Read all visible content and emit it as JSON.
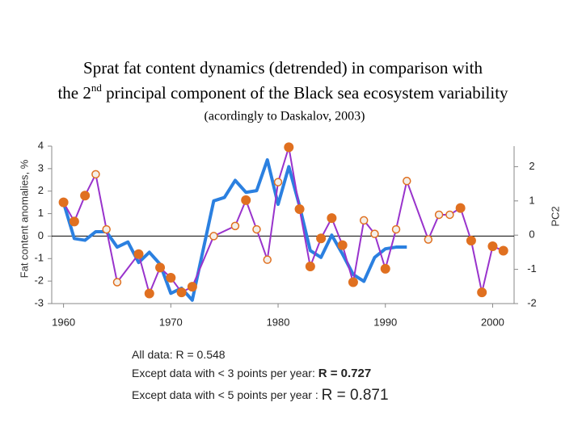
{
  "chart_data": {
    "type": "line",
    "title_line1": "Sprat fat content dynamics (detrended) in comparison with",
    "title_line2_start": "the 2",
    "title_line2_sup": "nd",
    "title_line2_end": " principal component of the Black sea ecosystem variability",
    "subtitle": "(acordingly to Daskalov, 2003)",
    "ylabel": "Fat content anomalies, %",
    "y2label": "PC2",
    "xlim": [
      1958.9,
      2002
    ],
    "xticks": [
      1960,
      1970,
      1980,
      1990,
      2000
    ],
    "ylim": [
      -3,
      4
    ],
    "yticks": [
      -3,
      -2,
      -1,
      0,
      1,
      2,
      3,
      4
    ],
    "y2lim": [
      -2,
      2.6
    ],
    "y2ticks": [
      -2,
      -1,
      0,
      1,
      2
    ],
    "series": [
      {
        "color": "#9933cc",
        "marker_color": "#e07020",
        "x": [
          1960,
          1961,
          1962,
          1963,
          1964,
          1965,
          1967,
          1968,
          1969,
          1970,
          1971,
          1972,
          1974,
          1976,
          1977,
          1978,
          1979,
          1980,
          1981,
          1982,
          1983,
          1984,
          1985,
          1986,
          1987,
          1988,
          1989,
          1990,
          1991,
          1992,
          1994,
          1995,
          1996,
          1997,
          1998,
          1999,
          2000,
          2001
        ],
        "values": [
          1.5,
          0.65,
          1.8,
          2.75,
          0.3,
          -2.05,
          -0.8,
          -2.55,
          -1.4,
          -1.85,
          -2.5,
          -2.25,
          0,
          0.45,
          1.6,
          0.3,
          -1.05,
          2.4,
          3.95,
          1.2,
          -1.35,
          -0.1,
          0.8,
          -0.4,
          -2.05,
          0.7,
          0.1,
          -1.45,
          0.3,
          2.45,
          -0.15,
          0.95,
          0.95,
          1.25,
          -0.2,
          -2.5,
          -0.45,
          -0.65
        ],
        "marker_filled": [
          true,
          true,
          true,
          false,
          false,
          false,
          true,
          true,
          true,
          true,
          true,
          true,
          false,
          false,
          true,
          false,
          false,
          false,
          true,
          true,
          true,
          true,
          true,
          true,
          true,
          false,
          false,
          true,
          false,
          false,
          false,
          false,
          false,
          true,
          true,
          true,
          true,
          true
        ]
      },
      {
        "color": "#2b80e0",
        "axis": "y2",
        "x": [
          1960,
          1961,
          1962,
          1963,
          1964,
          1965,
          1966,
          1967,
          1968,
          1969,
          1970,
          1971,
          1972,
          1973,
          1974,
          1975,
          1976,
          1977,
          1978,
          1979,
          1980,
          1981,
          1982,
          1983,
          1984,
          1985,
          1986,
          1987,
          1988,
          1989,
          1990,
          1991,
          1992
        ],
        "values": [
          0.95,
          -0.1,
          -0.15,
          0.1,
          0.1,
          -0.35,
          -0.2,
          -0.8,
          -0.5,
          -0.85,
          -1.7,
          -1.55,
          -1.9,
          -0.45,
          1.0,
          1.1,
          1.6,
          1.25,
          1.3,
          2.2,
          0.9,
          2.0,
          0.85,
          -0.45,
          -0.65,
          0,
          -0.55,
          -1.15,
          -1.35,
          -0.65,
          -0.4,
          -0.35,
          -0.35
        ]
      }
    ],
    "annotations": [
      {
        "text": "All data: R = 0.548"
      },
      {
        "text": "Except data with < 3 points per year: ",
        "emphasis": "R = 0.727"
      },
      {
        "text": "Except data with < 5 points per year : ",
        "emphasis": "R = 0.871"
      }
    ]
  }
}
